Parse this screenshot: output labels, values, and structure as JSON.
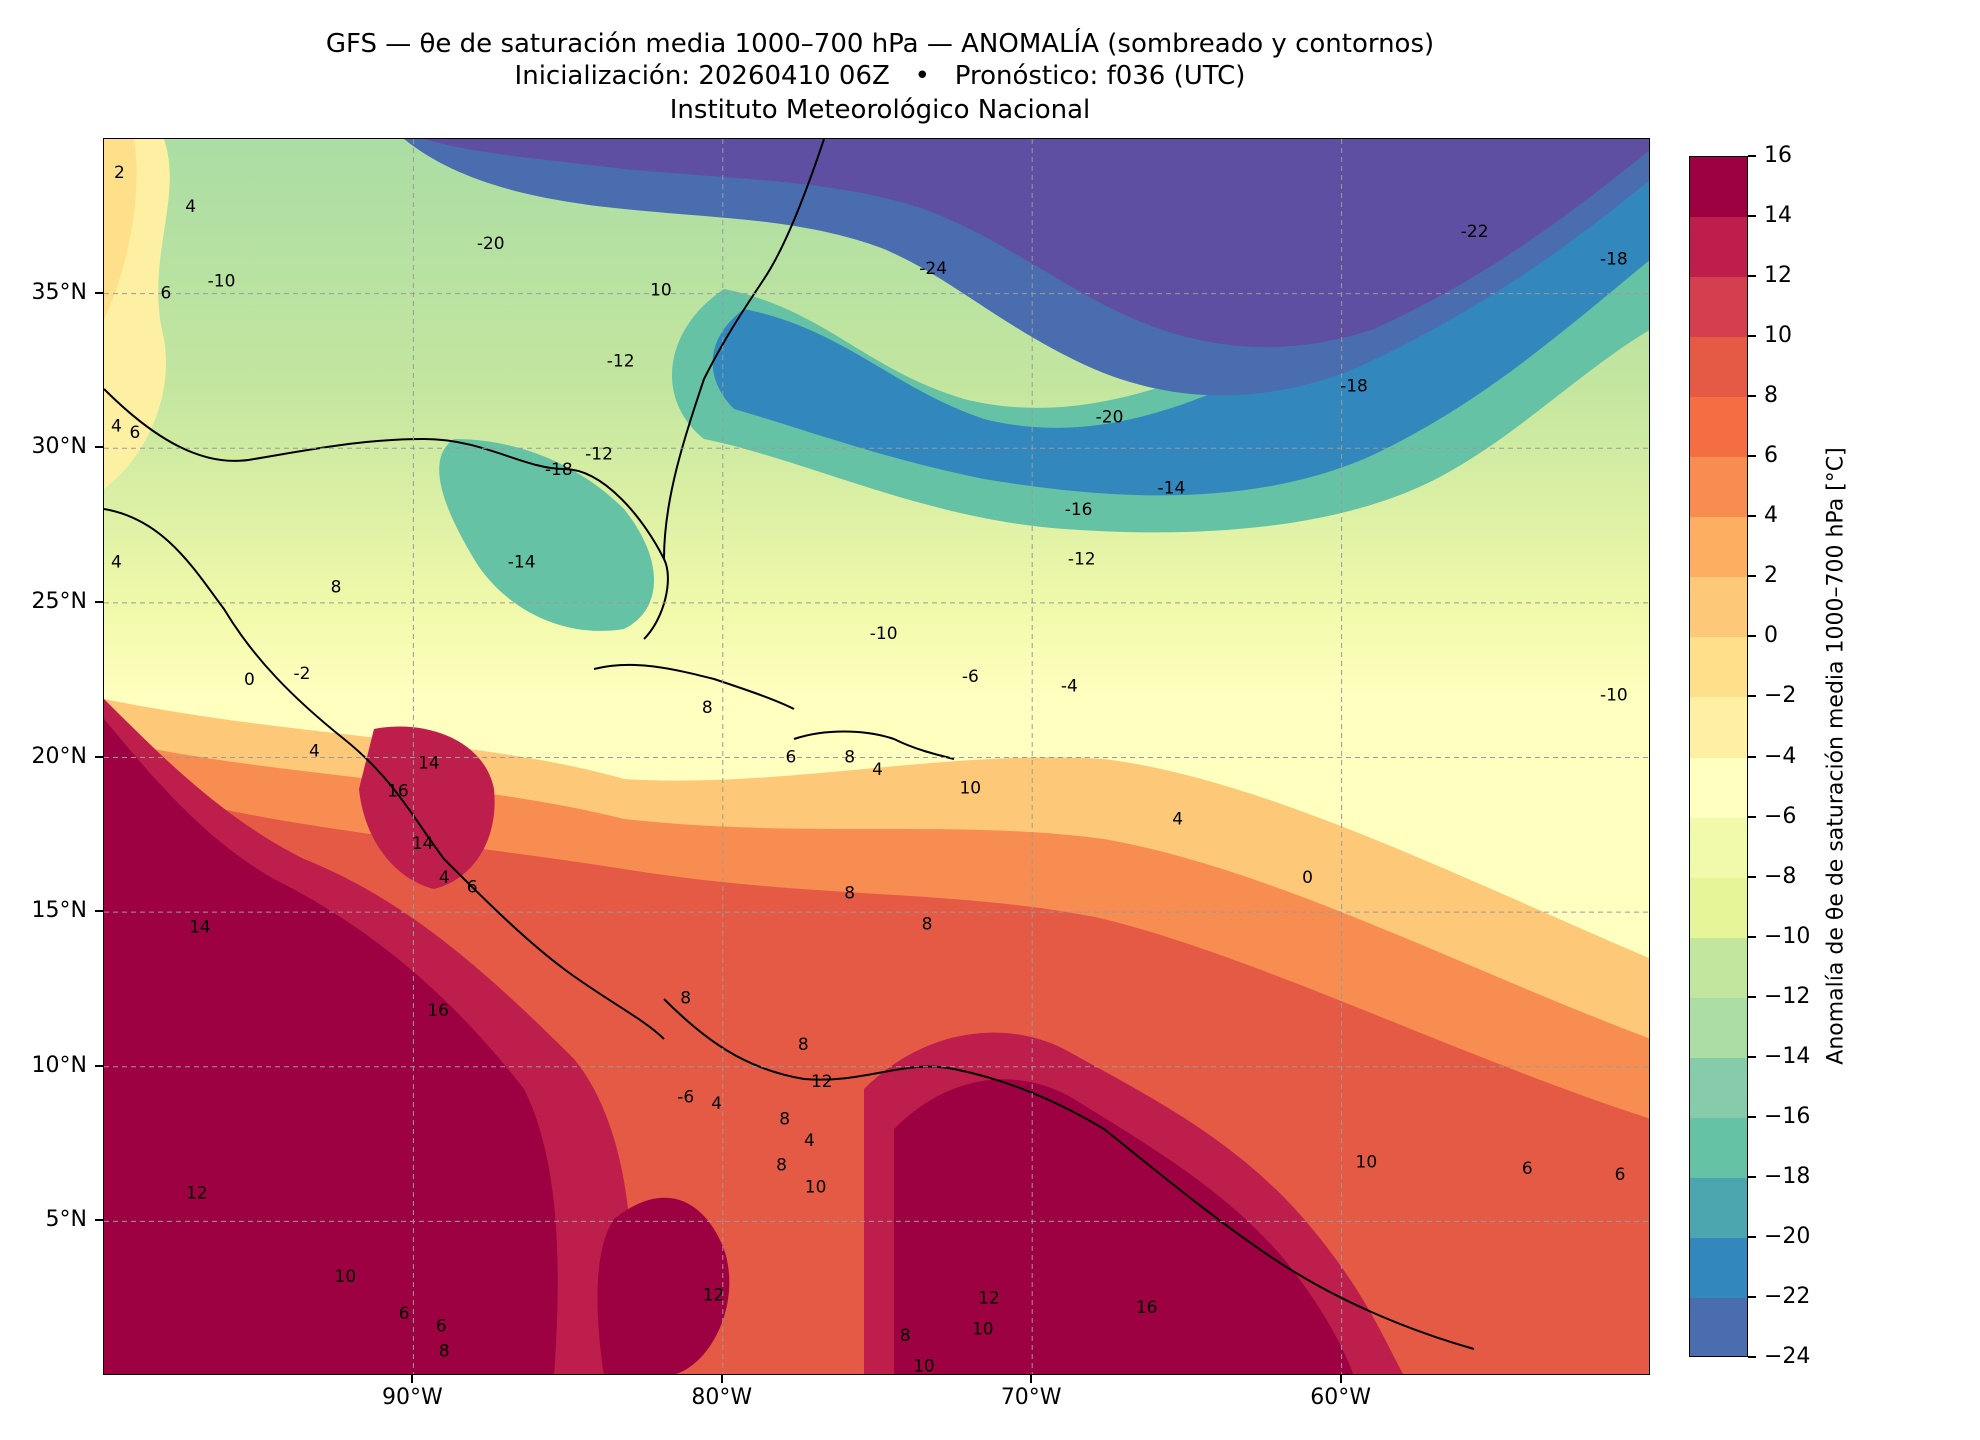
{
  "title": {
    "line1": "GFS — θe de saturación media 1000–700 hPa — ANOMALÍA (sombreado y contornos)",
    "line2": "Inicialización: 20260410 06Z   •   Pronóstico: f036 (UTC)",
    "line3": "Instituto Meteorológico Nacional"
  },
  "map": {
    "lon_range": [
      -100,
      -50
    ],
    "lat_range": [
      0,
      40
    ],
    "lon_ticks": [
      {
        "value": -90,
        "label": "90°W"
      },
      {
        "value": -80,
        "label": "80°W"
      },
      {
        "value": -70,
        "label": "70°W"
      },
      {
        "value": -60,
        "label": "60°W"
      }
    ],
    "lat_ticks": [
      {
        "value": 35,
        "label": "35°N"
      },
      {
        "value": 30,
        "label": "30°N"
      },
      {
        "value": 25,
        "label": "25°N"
      },
      {
        "value": 20,
        "label": "20°N"
      },
      {
        "value": 15,
        "label": "15°N"
      },
      {
        "value": 10,
        "label": "10°N"
      },
      {
        "value": 5,
        "label": "5°N"
      }
    ],
    "gridlines": true,
    "contour_labels": [
      {
        "lon": -87.5,
        "lat": 36.6,
        "text": "-20"
      },
      {
        "lon": -73.2,
        "lat": 35.8,
        "text": "-24"
      },
      {
        "lon": -55.7,
        "lat": 37.0,
        "text": "-22"
      },
      {
        "lon": -51.2,
        "lat": 36.1,
        "text": "-18"
      },
      {
        "lon": -82.0,
        "lat": 35.1,
        "text": "10"
      },
      {
        "lon": -83.3,
        "lat": 32.8,
        "text": "-12"
      },
      {
        "lon": -96.2,
        "lat": 35.4,
        "text": "-10"
      },
      {
        "lon": -98.0,
        "lat": 35.0,
        "text": "6"
      },
      {
        "lon": -97.2,
        "lat": 37.8,
        "text": "4"
      },
      {
        "lon": -99.5,
        "lat": 38.9,
        "text": "2"
      },
      {
        "lon": -59.6,
        "lat": 32.0,
        "text": "-18"
      },
      {
        "lon": -67.5,
        "lat": 31.0,
        "text": "-20"
      },
      {
        "lon": -85.3,
        "lat": 29.3,
        "text": "-18"
      },
      {
        "lon": -84.0,
        "lat": 29.8,
        "text": "-12"
      },
      {
        "lon": -68.5,
        "lat": 28.0,
        "text": "-16"
      },
      {
        "lon": -65.5,
        "lat": 28.7,
        "text": "-14"
      },
      {
        "lon": -68.4,
        "lat": 26.4,
        "text": "-12"
      },
      {
        "lon": -86.5,
        "lat": 26.3,
        "text": "-14"
      },
      {
        "lon": -92.5,
        "lat": 25.5,
        "text": "8"
      },
      {
        "lon": -99.6,
        "lat": 30.7,
        "text": "4"
      },
      {
        "lon": -99.0,
        "lat": 30.5,
        "text": "6"
      },
      {
        "lon": -99.6,
        "lat": 26.3,
        "text": "4"
      },
      {
        "lon": -74.8,
        "lat": 24.0,
        "text": "-10"
      },
      {
        "lon": -72.0,
        "lat": 22.6,
        "text": "-6"
      },
      {
        "lon": -68.8,
        "lat": 22.3,
        "text": "-4"
      },
      {
        "lon": -51.2,
        "lat": 22.0,
        "text": "-10"
      },
      {
        "lon": -95.3,
        "lat": 22.5,
        "text": "0"
      },
      {
        "lon": -93.6,
        "lat": 22.7,
        "text": "-2"
      },
      {
        "lon": -80.5,
        "lat": 21.6,
        "text": "8"
      },
      {
        "lon": -93.2,
        "lat": 20.2,
        "text": "4"
      },
      {
        "lon": -90.5,
        "lat": 18.9,
        "text": "16"
      },
      {
        "lon": -89.5,
        "lat": 19.8,
        "text": "14"
      },
      {
        "lon": -89.7,
        "lat": 17.2,
        "text": "14"
      },
      {
        "lon": -89.0,
        "lat": 16.1,
        "text": "4"
      },
      {
        "lon": -88.1,
        "lat": 15.8,
        "text": "6"
      },
      {
        "lon": -77.8,
        "lat": 20.0,
        "text": "6"
      },
      {
        "lon": -75.9,
        "lat": 20.0,
        "text": "8"
      },
      {
        "lon": -75.0,
        "lat": 19.6,
        "text": "4"
      },
      {
        "lon": -72.0,
        "lat": 19.0,
        "text": "10"
      },
      {
        "lon": -65.3,
        "lat": 18.0,
        "text": "4"
      },
      {
        "lon": -61.1,
        "lat": 16.1,
        "text": "0"
      },
      {
        "lon": -96.9,
        "lat": 14.5,
        "text": "14"
      },
      {
        "lon": -75.9,
        "lat": 15.6,
        "text": "8"
      },
      {
        "lon": -73.4,
        "lat": 14.6,
        "text": "8"
      },
      {
        "lon": -89.2,
        "lat": 11.8,
        "text": "16"
      },
      {
        "lon": -81.2,
        "lat": 12.2,
        "text": "8"
      },
      {
        "lon": -77.4,
        "lat": 10.7,
        "text": "8"
      },
      {
        "lon": -81.2,
        "lat": 9.0,
        "text": "-6"
      },
      {
        "lon": -80.2,
        "lat": 8.8,
        "text": "4"
      },
      {
        "lon": -76.8,
        "lat": 9.5,
        "text": "12"
      },
      {
        "lon": -78.0,
        "lat": 8.3,
        "text": "8"
      },
      {
        "lon": -77.2,
        "lat": 7.6,
        "text": "4"
      },
      {
        "lon": -78.1,
        "lat": 6.8,
        "text": "8"
      },
      {
        "lon": -77.0,
        "lat": 6.1,
        "text": "10"
      },
      {
        "lon": -97.0,
        "lat": 5.9,
        "text": "12"
      },
      {
        "lon": -59.2,
        "lat": 6.9,
        "text": "10"
      },
      {
        "lon": -54.0,
        "lat": 6.7,
        "text": "6"
      },
      {
        "lon": -51.0,
        "lat": 6.5,
        "text": "6"
      },
      {
        "lon": -92.2,
        "lat": 3.2,
        "text": "10"
      },
      {
        "lon": -80.3,
        "lat": 2.6,
        "text": "12"
      },
      {
        "lon": -90.3,
        "lat": 2.0,
        "text": "6"
      },
      {
        "lon": -89.1,
        "lat": 1.6,
        "text": "6"
      },
      {
        "lon": -89.0,
        "lat": 0.8,
        "text": "8"
      },
      {
        "lon": -71.4,
        "lat": 2.5,
        "text": "12"
      },
      {
        "lon": -71.6,
        "lat": 1.5,
        "text": "10"
      },
      {
        "lon": -66.3,
        "lat": 2.2,
        "text": "16"
      },
      {
        "lon": -74.1,
        "lat": 1.3,
        "text": "8"
      },
      {
        "lon": -73.5,
        "lat": 0.3,
        "text": "10"
      }
    ]
  },
  "colorbar": {
    "label": "Anomalía de θe de saturación media 1000–700 hPa [°C]",
    "levels": [
      16,
      14,
      12,
      10,
      8,
      6,
      4,
      2,
      0,
      -2,
      -4,
      -6,
      -8,
      -10,
      -12,
      -14,
      -16,
      -18,
      -20,
      -22,
      -24
    ],
    "tick_labels": [
      "16",
      "14",
      "12",
      "10",
      "8",
      "6",
      "4",
      "2",
      "0",
      "−2",
      "−4",
      "−6",
      "−8",
      "−10",
      "−12",
      "−14",
      "−16",
      "−18",
      "−20",
      "−22",
      "−24"
    ],
    "band_colors": [
      "#9e0142",
      "#be1e4b",
      "#d53e4f",
      "#e45a45",
      "#f46d43",
      "#f88d52",
      "#fdae61",
      "#fdc877",
      "#fee08b",
      "#fef0a3",
      "#ffffbf",
      "#f1f9aa",
      "#e6f598",
      "#c3e69f",
      "#abdda4",
      "#86ccaa",
      "#66c2a5",
      "#4ca6b0",
      "#3288bd",
      "#4a6db0",
      "#5e4fa2"
    ]
  }
}
